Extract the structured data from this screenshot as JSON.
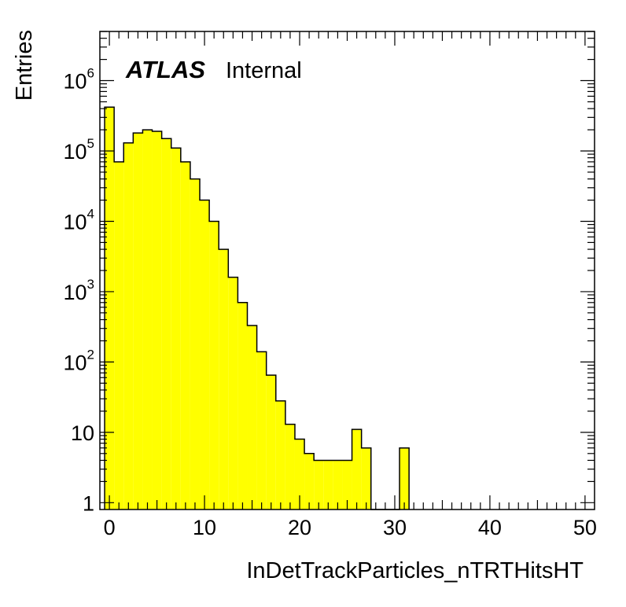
{
  "chart_data": {
    "type": "bar",
    "histogram": true,
    "fill_color": "#ffff00",
    "line_color": "#000000",
    "xlabel": "InDetTrackParticles_nTRTHitsHT",
    "ylabel": "Entries",
    "xlim": [
      -1,
      51
    ],
    "ylim": [
      0.8,
      5000000
    ],
    "y_scale": "log",
    "grid": false,
    "x_ticks": [
      "0",
      "10",
      "20",
      "30",
      "40",
      "50"
    ],
    "y_ticks": [
      {
        "base": "1",
        "exp": ""
      },
      {
        "base": "10",
        "exp": ""
      },
      {
        "base": "10",
        "exp": "2"
      },
      {
        "base": "10",
        "exp": "3"
      },
      {
        "base": "10",
        "exp": "4"
      },
      {
        "base": "10",
        "exp": "5"
      },
      {
        "base": "10",
        "exp": "6"
      }
    ],
    "label_atlas": "ATLAS",
    "label_status": "Internal",
    "bin_edges": [
      -0.5,
      0.5,
      1.5,
      2.5,
      3.5,
      4.5,
      5.5,
      6.5,
      7.5,
      8.5,
      9.5,
      10.5,
      11.5,
      12.5,
      13.5,
      14.5,
      15.5,
      16.5,
      17.5,
      18.5,
      19.5,
      20.5,
      21.5,
      22.5,
      23.5,
      24.5,
      25.5,
      26.5,
      27.5,
      28.5,
      29.5,
      30.5,
      31.5
    ],
    "values": [
      420000,
      70000,
      130000,
      180000,
      200000,
      190000,
      150000,
      110000,
      70000,
      40000,
      20000,
      10000,
      4000,
      1600,
      700,
      330,
      140,
      65,
      28,
      13,
      8,
      5,
      4,
      4,
      4,
      4,
      11,
      6,
      0,
      0,
      0,
      6
    ]
  }
}
